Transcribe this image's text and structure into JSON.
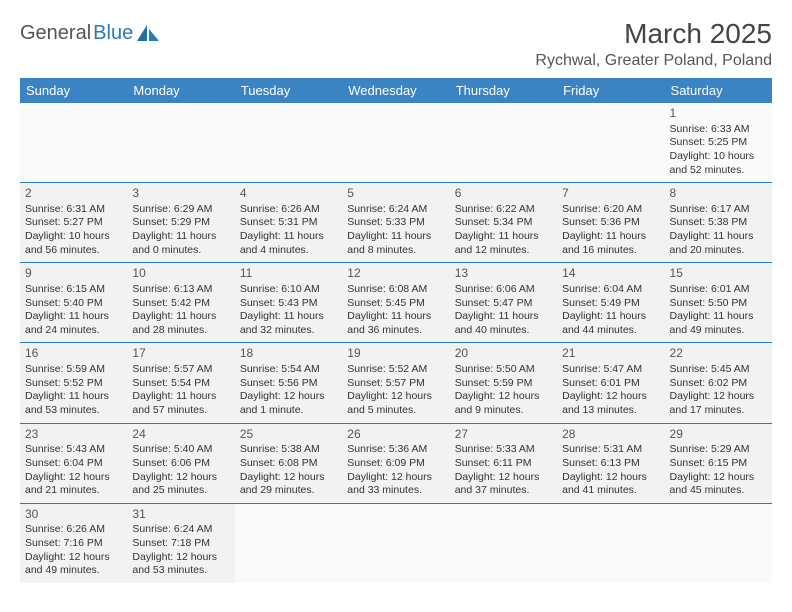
{
  "logo": {
    "word1": "General",
    "word2": "Blue"
  },
  "title": "March 2025",
  "location": "Rychwal, Greater Poland, Poland",
  "colors": {
    "header_bg": "#3b84c4",
    "header_fg": "#ffffff",
    "row_bg": "#f2f2f2",
    "border": "#2a7ab8",
    "logo_accent": "#2a7ab8"
  },
  "weekdays": [
    "Sunday",
    "Monday",
    "Tuesday",
    "Wednesday",
    "Thursday",
    "Friday",
    "Saturday"
  ],
  "weeks": [
    [
      null,
      null,
      null,
      null,
      null,
      null,
      {
        "n": "1",
        "sr": "Sunrise: 6:33 AM",
        "ss": "Sunset: 5:25 PM",
        "dl1": "Daylight: 10 hours",
        "dl2": "and 52 minutes."
      }
    ],
    [
      {
        "n": "2",
        "sr": "Sunrise: 6:31 AM",
        "ss": "Sunset: 5:27 PM",
        "dl1": "Daylight: 10 hours",
        "dl2": "and 56 minutes."
      },
      {
        "n": "3",
        "sr": "Sunrise: 6:29 AM",
        "ss": "Sunset: 5:29 PM",
        "dl1": "Daylight: 11 hours",
        "dl2": "and 0 minutes."
      },
      {
        "n": "4",
        "sr": "Sunrise: 6:26 AM",
        "ss": "Sunset: 5:31 PM",
        "dl1": "Daylight: 11 hours",
        "dl2": "and 4 minutes."
      },
      {
        "n": "5",
        "sr": "Sunrise: 6:24 AM",
        "ss": "Sunset: 5:33 PM",
        "dl1": "Daylight: 11 hours",
        "dl2": "and 8 minutes."
      },
      {
        "n": "6",
        "sr": "Sunrise: 6:22 AM",
        "ss": "Sunset: 5:34 PM",
        "dl1": "Daylight: 11 hours",
        "dl2": "and 12 minutes."
      },
      {
        "n": "7",
        "sr": "Sunrise: 6:20 AM",
        "ss": "Sunset: 5:36 PM",
        "dl1": "Daylight: 11 hours",
        "dl2": "and 16 minutes."
      },
      {
        "n": "8",
        "sr": "Sunrise: 6:17 AM",
        "ss": "Sunset: 5:38 PM",
        "dl1": "Daylight: 11 hours",
        "dl2": "and 20 minutes."
      }
    ],
    [
      {
        "n": "9",
        "sr": "Sunrise: 6:15 AM",
        "ss": "Sunset: 5:40 PM",
        "dl1": "Daylight: 11 hours",
        "dl2": "and 24 minutes."
      },
      {
        "n": "10",
        "sr": "Sunrise: 6:13 AM",
        "ss": "Sunset: 5:42 PM",
        "dl1": "Daylight: 11 hours",
        "dl2": "and 28 minutes."
      },
      {
        "n": "11",
        "sr": "Sunrise: 6:10 AM",
        "ss": "Sunset: 5:43 PM",
        "dl1": "Daylight: 11 hours",
        "dl2": "and 32 minutes."
      },
      {
        "n": "12",
        "sr": "Sunrise: 6:08 AM",
        "ss": "Sunset: 5:45 PM",
        "dl1": "Daylight: 11 hours",
        "dl2": "and 36 minutes."
      },
      {
        "n": "13",
        "sr": "Sunrise: 6:06 AM",
        "ss": "Sunset: 5:47 PM",
        "dl1": "Daylight: 11 hours",
        "dl2": "and 40 minutes."
      },
      {
        "n": "14",
        "sr": "Sunrise: 6:04 AM",
        "ss": "Sunset: 5:49 PM",
        "dl1": "Daylight: 11 hours",
        "dl2": "and 44 minutes."
      },
      {
        "n": "15",
        "sr": "Sunrise: 6:01 AM",
        "ss": "Sunset: 5:50 PM",
        "dl1": "Daylight: 11 hours",
        "dl2": "and 49 minutes."
      }
    ],
    [
      {
        "n": "16",
        "sr": "Sunrise: 5:59 AM",
        "ss": "Sunset: 5:52 PM",
        "dl1": "Daylight: 11 hours",
        "dl2": "and 53 minutes."
      },
      {
        "n": "17",
        "sr": "Sunrise: 5:57 AM",
        "ss": "Sunset: 5:54 PM",
        "dl1": "Daylight: 11 hours",
        "dl2": "and 57 minutes."
      },
      {
        "n": "18",
        "sr": "Sunrise: 5:54 AM",
        "ss": "Sunset: 5:56 PM",
        "dl1": "Daylight: 12 hours",
        "dl2": "and 1 minute."
      },
      {
        "n": "19",
        "sr": "Sunrise: 5:52 AM",
        "ss": "Sunset: 5:57 PM",
        "dl1": "Daylight: 12 hours",
        "dl2": "and 5 minutes."
      },
      {
        "n": "20",
        "sr": "Sunrise: 5:50 AM",
        "ss": "Sunset: 5:59 PM",
        "dl1": "Daylight: 12 hours",
        "dl2": "and 9 minutes."
      },
      {
        "n": "21",
        "sr": "Sunrise: 5:47 AM",
        "ss": "Sunset: 6:01 PM",
        "dl1": "Daylight: 12 hours",
        "dl2": "and 13 minutes."
      },
      {
        "n": "22",
        "sr": "Sunrise: 5:45 AM",
        "ss": "Sunset: 6:02 PM",
        "dl1": "Daylight: 12 hours",
        "dl2": "and 17 minutes."
      }
    ],
    [
      {
        "n": "23",
        "sr": "Sunrise: 5:43 AM",
        "ss": "Sunset: 6:04 PM",
        "dl1": "Daylight: 12 hours",
        "dl2": "and 21 minutes."
      },
      {
        "n": "24",
        "sr": "Sunrise: 5:40 AM",
        "ss": "Sunset: 6:06 PM",
        "dl1": "Daylight: 12 hours",
        "dl2": "and 25 minutes."
      },
      {
        "n": "25",
        "sr": "Sunrise: 5:38 AM",
        "ss": "Sunset: 6:08 PM",
        "dl1": "Daylight: 12 hours",
        "dl2": "and 29 minutes."
      },
      {
        "n": "26",
        "sr": "Sunrise: 5:36 AM",
        "ss": "Sunset: 6:09 PM",
        "dl1": "Daylight: 12 hours",
        "dl2": "and 33 minutes."
      },
      {
        "n": "27",
        "sr": "Sunrise: 5:33 AM",
        "ss": "Sunset: 6:11 PM",
        "dl1": "Daylight: 12 hours",
        "dl2": "and 37 minutes."
      },
      {
        "n": "28",
        "sr": "Sunrise: 5:31 AM",
        "ss": "Sunset: 6:13 PM",
        "dl1": "Daylight: 12 hours",
        "dl2": "and 41 minutes."
      },
      {
        "n": "29",
        "sr": "Sunrise: 5:29 AM",
        "ss": "Sunset: 6:15 PM",
        "dl1": "Daylight: 12 hours",
        "dl2": "and 45 minutes."
      }
    ],
    [
      {
        "n": "30",
        "sr": "Sunrise: 6:26 AM",
        "ss": "Sunset: 7:16 PM",
        "dl1": "Daylight: 12 hours",
        "dl2": "and 49 minutes."
      },
      {
        "n": "31",
        "sr": "Sunrise: 6:24 AM",
        "ss": "Sunset: 7:18 PM",
        "dl1": "Daylight: 12 hours",
        "dl2": "and 53 minutes."
      },
      null,
      null,
      null,
      null,
      null
    ]
  ]
}
